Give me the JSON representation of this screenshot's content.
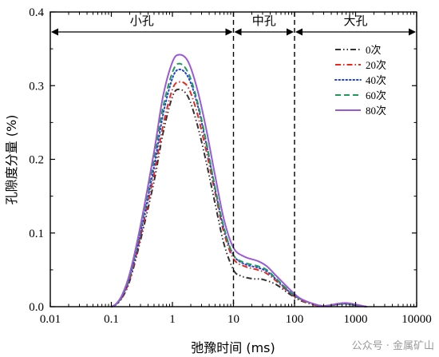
{
  "chart_data": {
    "type": "line",
    "xlabel": "弛豫时间 (ms)",
    "ylabel": "孔隙度分量 (%)",
    "x_scale": "log",
    "xlim": [
      0.01,
      10000
    ],
    "ylim": [
      0,
      0.4
    ],
    "x_ticks": [
      0.01,
      0.1,
      1,
      10,
      100,
      1000,
      10000
    ],
    "x_tick_labels": [
      "0.01",
      "0.1",
      "1",
      "10",
      "100",
      "1000",
      "10000"
    ],
    "y_ticks": [
      0,
      0.1,
      0.2,
      0.3,
      0.4
    ],
    "y_tick_labels": [
      "0.0",
      "0.1",
      "0.2",
      "0.3",
      "0.4"
    ],
    "grid": false,
    "legend_position": "top-right",
    "regions": [
      {
        "label": "小孔",
        "from": 0.01,
        "to": 10
      },
      {
        "label": "中孔",
        "from": 10,
        "to": 100
      },
      {
        "label": "大孔",
        "from": 100,
        "to": 10000
      }
    ],
    "boundaries": [
      10,
      100
    ],
    "series": [
      {
        "name": "0次",
        "color": "#333333",
        "dash": "dash-dot-dot",
        "points": [
          [
            0.1,
            0
          ],
          [
            0.12,
            0.003
          ],
          [
            0.15,
            0.012
          ],
          [
            0.2,
            0.035
          ],
          [
            0.3,
            0.09
          ],
          [
            0.5,
            0.17
          ],
          [
            0.7,
            0.235
          ],
          [
            1.0,
            0.285
          ],
          [
            1.3,
            0.295
          ],
          [
            1.8,
            0.285
          ],
          [
            2.5,
            0.25
          ],
          [
            3.5,
            0.2
          ],
          [
            5,
            0.14
          ],
          [
            7,
            0.085
          ],
          [
            10,
            0.05
          ],
          [
            13,
            0.042
          ],
          [
            20,
            0.038
          ],
          [
            30,
            0.037
          ],
          [
            50,
            0.03
          ],
          [
            80,
            0.018
          ],
          [
            120,
            0.009
          ],
          [
            200,
            0.003
          ],
          [
            300,
            0.001
          ],
          [
            500,
            0.003
          ],
          [
            700,
            0.004
          ],
          [
            1000,
            0.002
          ],
          [
            1500,
            0
          ]
        ]
      },
      {
        "name": "20次",
        "color": "#e8291c",
        "dash": "dash-dot",
        "points": [
          [
            0.1,
            0
          ],
          [
            0.12,
            0.003
          ],
          [
            0.15,
            0.013
          ],
          [
            0.2,
            0.037
          ],
          [
            0.3,
            0.095
          ],
          [
            0.5,
            0.18
          ],
          [
            0.7,
            0.245
          ],
          [
            1.0,
            0.295
          ],
          [
            1.3,
            0.305
          ],
          [
            1.8,
            0.298
          ],
          [
            2.5,
            0.265
          ],
          [
            3.5,
            0.215
          ],
          [
            5,
            0.155
          ],
          [
            7,
            0.1
          ],
          [
            10,
            0.065
          ],
          [
            15,
            0.055
          ],
          [
            25,
            0.05
          ],
          [
            35,
            0.045
          ],
          [
            50,
            0.035
          ],
          [
            80,
            0.02
          ],
          [
            120,
            0.01
          ],
          [
            200,
            0.003
          ],
          [
            300,
            0.001
          ],
          [
            500,
            0.003
          ],
          [
            700,
            0.004
          ],
          [
            1000,
            0.002
          ],
          [
            1500,
            0
          ]
        ]
      },
      {
        "name": "40次",
        "color": "#1f3fd9",
        "dash": "dot",
        "points": [
          [
            0.1,
            0
          ],
          [
            0.12,
            0.003
          ],
          [
            0.15,
            0.014
          ],
          [
            0.2,
            0.04
          ],
          [
            0.3,
            0.1
          ],
          [
            0.5,
            0.19
          ],
          [
            0.7,
            0.26
          ],
          [
            1.0,
            0.31
          ],
          [
            1.3,
            0.322
          ],
          [
            1.8,
            0.312
          ],
          [
            2.5,
            0.278
          ],
          [
            3.5,
            0.225
          ],
          [
            5,
            0.16
          ],
          [
            7,
            0.105
          ],
          [
            10,
            0.07
          ],
          [
            15,
            0.058
          ],
          [
            25,
            0.053
          ],
          [
            35,
            0.048
          ],
          [
            50,
            0.037
          ],
          [
            80,
            0.021
          ],
          [
            120,
            0.011
          ],
          [
            200,
            0.004
          ],
          [
            300,
            0.001
          ],
          [
            500,
            0.003
          ],
          [
            700,
            0.004
          ],
          [
            1000,
            0.002
          ],
          [
            1500,
            0
          ]
        ]
      },
      {
        "name": "60次",
        "color": "#1e9a56",
        "dash": "dash",
        "points": [
          [
            0.1,
            0
          ],
          [
            0.12,
            0.003
          ],
          [
            0.15,
            0.015
          ],
          [
            0.2,
            0.042
          ],
          [
            0.3,
            0.105
          ],
          [
            0.5,
            0.2
          ],
          [
            0.7,
            0.27
          ],
          [
            1.0,
            0.318
          ],
          [
            1.3,
            0.33
          ],
          [
            1.8,
            0.318
          ],
          [
            2.5,
            0.282
          ],
          [
            3.5,
            0.228
          ],
          [
            5,
            0.162
          ],
          [
            7,
            0.107
          ],
          [
            10,
            0.07
          ],
          [
            15,
            0.06
          ],
          [
            25,
            0.055
          ],
          [
            35,
            0.05
          ],
          [
            50,
            0.038
          ],
          [
            80,
            0.022
          ],
          [
            120,
            0.011
          ],
          [
            200,
            0.004
          ],
          [
            300,
            0.001
          ],
          [
            500,
            0.003
          ],
          [
            700,
            0.004
          ],
          [
            1000,
            0.002
          ],
          [
            1500,
            0
          ]
        ]
      },
      {
        "name": "80次",
        "color": "#9b59d6",
        "dash": "solid",
        "points": [
          [
            0.1,
            0
          ],
          [
            0.12,
            0.004
          ],
          [
            0.15,
            0.016
          ],
          [
            0.2,
            0.045
          ],
          [
            0.3,
            0.11
          ],
          [
            0.5,
            0.21
          ],
          [
            0.7,
            0.285
          ],
          [
            1.0,
            0.332
          ],
          [
            1.3,
            0.342
          ],
          [
            1.8,
            0.333
          ],
          [
            2.5,
            0.298
          ],
          [
            3.5,
            0.245
          ],
          [
            5,
            0.178
          ],
          [
            7,
            0.118
          ],
          [
            10,
            0.08
          ],
          [
            15,
            0.068
          ],
          [
            25,
            0.062
          ],
          [
            35,
            0.055
          ],
          [
            50,
            0.042
          ],
          [
            80,
            0.025
          ],
          [
            120,
            0.012
          ],
          [
            200,
            0.004
          ],
          [
            300,
            0.001
          ],
          [
            500,
            0.004
          ],
          [
            700,
            0.005
          ],
          [
            1000,
            0.003
          ],
          [
            1500,
            0
          ]
        ]
      }
    ]
  },
  "watermark": "公众号 · 金属矿山"
}
